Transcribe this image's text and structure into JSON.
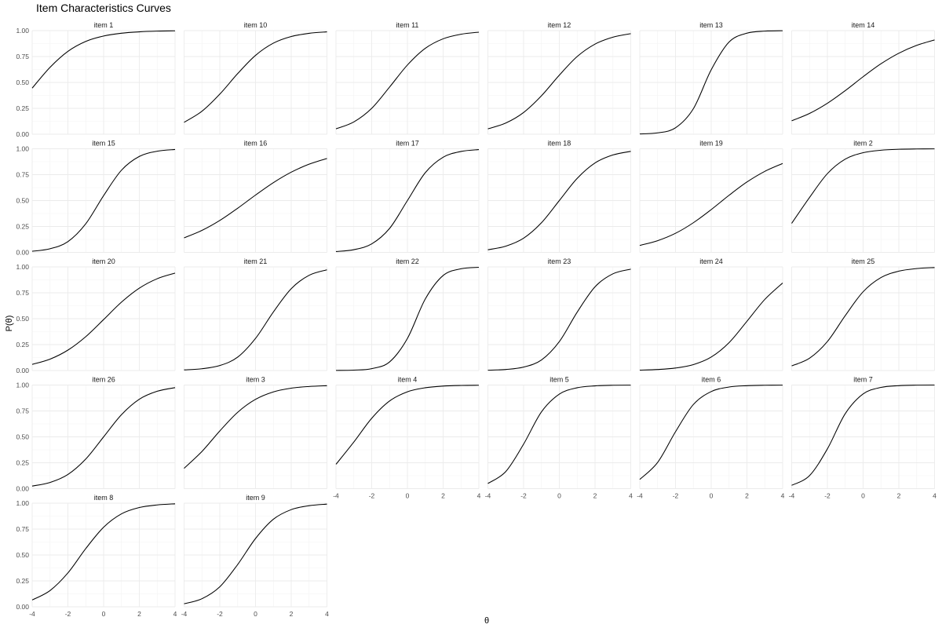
{
  "chart_data": {
    "type": "line",
    "title": "Item Characteristics Curves",
    "xlabel": "θ",
    "ylabel": "P(θ)",
    "xlim": [
      -4,
      4
    ],
    "ylim": [
      0,
      1
    ],
    "x_ticks": [
      "-4",
      "-2",
      "0",
      "2",
      "4"
    ],
    "y_ticks": [
      "0.00",
      "0.25",
      "0.50",
      "0.75",
      "1.00"
    ],
    "x_tick_values": [
      -4,
      -2,
      0,
      2,
      4
    ],
    "y_tick_values": [
      0,
      0.25,
      0.5,
      0.75,
      1
    ],
    "x": [
      -4,
      -3,
      -2,
      -1,
      0,
      1,
      2,
      3,
      4
    ],
    "grid": true,
    "series": [
      {
        "name": "item 1",
        "values": [
          0.445,
          0.646,
          0.8,
          0.896,
          0.948,
          0.975,
          0.988,
          0.995,
          0.998
        ]
      },
      {
        "name": "item 10",
        "values": [
          0.115,
          0.222,
          0.387,
          0.585,
          0.761,
          0.879,
          0.943,
          0.974,
          0.988
        ]
      },
      {
        "name": "item 11",
        "values": [
          0.052,
          0.119,
          0.25,
          0.455,
          0.668,
          0.829,
          0.921,
          0.965,
          0.985
        ]
      },
      {
        "name": "item 12",
        "values": [
          0.052,
          0.108,
          0.21,
          0.371,
          0.57,
          0.75,
          0.87,
          0.937,
          0.971
        ]
      },
      {
        "name": "item 13",
        "values": [
          0.003,
          0.013,
          0.062,
          0.246,
          0.622,
          0.89,
          0.975,
          0.995,
          0.999
        ]
      },
      {
        "name": "item 14",
        "values": [
          0.13,
          0.201,
          0.299,
          0.421,
          0.555,
          0.68,
          0.782,
          0.858,
          0.91
        ]
      },
      {
        "name": "item 15",
        "values": [
          0.011,
          0.035,
          0.104,
          0.276,
          0.548,
          0.793,
          0.926,
          0.976,
          0.993
        ]
      },
      {
        "name": "item 16",
        "values": [
          0.14,
          0.212,
          0.308,
          0.426,
          0.553,
          0.673,
          0.774,
          0.851,
          0.906
        ]
      },
      {
        "name": "item 17",
        "values": [
          0.008,
          0.026,
          0.082,
          0.231,
          0.5,
          0.769,
          0.918,
          0.974,
          0.992
        ]
      },
      {
        "name": "item 18",
        "values": [
          0.025,
          0.06,
          0.137,
          0.286,
          0.5,
          0.714,
          0.863,
          0.94,
          0.975
        ]
      },
      {
        "name": "item 19",
        "values": [
          0.067,
          0.113,
          0.184,
          0.286,
          0.413,
          0.551,
          0.679,
          0.782,
          0.858
        ]
      },
      {
        "name": "item 2",
        "values": [
          0.28,
          0.53,
          0.76,
          0.9,
          0.962,
          0.986,
          0.995,
          0.998,
          0.999
        ]
      },
      {
        "name": "item 20",
        "values": [
          0.059,
          0.11,
          0.197,
          0.327,
          0.492,
          0.66,
          0.795,
          0.886,
          0.94
        ]
      },
      {
        "name": "item 21",
        "values": [
          0.006,
          0.017,
          0.048,
          0.129,
          0.31,
          0.565,
          0.79,
          0.919,
          0.972
        ]
      },
      {
        "name": "item 22",
        "values": [
          0.001,
          0.004,
          0.018,
          0.083,
          0.31,
          0.69,
          0.917,
          0.982,
          0.996
        ]
      },
      {
        "name": "item 23",
        "values": [
          0.003,
          0.01,
          0.033,
          0.102,
          0.279,
          0.563,
          0.808,
          0.933,
          0.978
        ]
      },
      {
        "name": "item 24",
        "values": [
          0.004,
          0.01,
          0.024,
          0.057,
          0.13,
          0.269,
          0.475,
          0.686,
          0.845
        ]
      },
      {
        "name": "item 25",
        "values": [
          0.045,
          0.119,
          0.28,
          0.53,
          0.76,
          0.897,
          0.959,
          0.984,
          0.994
        ]
      },
      {
        "name": "item 26",
        "values": [
          0.025,
          0.06,
          0.137,
          0.286,
          0.5,
          0.714,
          0.863,
          0.94,
          0.975
        ]
      },
      {
        "name": "item 3",
        "values": [
          0.196,
          0.359,
          0.557,
          0.737,
          0.862,
          0.934,
          0.97,
          0.986,
          0.994
        ]
      },
      {
        "name": "item 4",
        "values": [
          0.235,
          0.45,
          0.679,
          0.846,
          0.935,
          0.974,
          0.99,
          0.996,
          0.998
        ]
      },
      {
        "name": "item 5",
        "values": [
          0.05,
          0.165,
          0.43,
          0.741,
          0.912,
          0.974,
          0.992,
          0.998,
          0.999
        ]
      },
      {
        "name": "item 6",
        "values": [
          0.089,
          0.253,
          0.549,
          0.812,
          0.937,
          0.981,
          0.994,
          0.998,
          0.999
        ]
      },
      {
        "name": "item 7",
        "values": [
          0.032,
          0.126,
          0.384,
          0.724,
          0.914,
          0.977,
          0.994,
          0.999,
          1.0
        ]
      },
      {
        "name": "item 8",
        "values": [
          0.066,
          0.157,
          0.327,
          0.562,
          0.768,
          0.897,
          0.958,
          0.983,
          0.994
        ]
      },
      {
        "name": "item 9",
        "values": [
          0.029,
          0.078,
          0.193,
          0.408,
          0.659,
          0.845,
          0.938,
          0.976,
          0.991
        ]
      }
    ]
  }
}
